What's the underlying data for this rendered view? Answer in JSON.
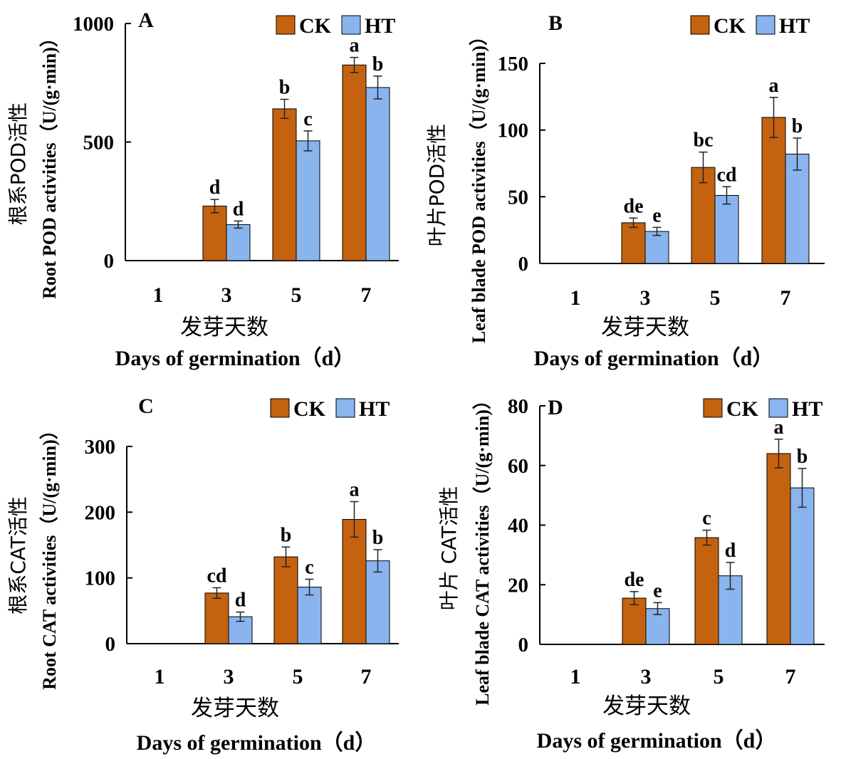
{
  "colors": {
    "ck": "#C4620F",
    "ht": "#89B4EE",
    "axis": "#000000",
    "error": "#222222"
  },
  "chart_data": [
    {
      "type": "bar",
      "panel_label": "A",
      "categories": [
        "1",
        "3",
        "5",
        "7"
      ],
      "series": [
        {
          "name": "CK",
          "values": [
            null,
            230,
            640,
            825
          ],
          "errors": [
            null,
            28,
            40,
            32
          ],
          "letters": [
            "",
            "d",
            "b",
            "a"
          ]
        },
        {
          "name": "HT",
          "values": [
            null,
            152,
            505,
            730
          ],
          "errors": [
            null,
            15,
            42,
            48
          ],
          "letters": [
            "",
            "d",
            "c",
            "b"
          ]
        }
      ],
      "ylim": [
        0,
        1000
      ],
      "yticks": [
        0,
        500,
        1000
      ],
      "ylabel_zh": "根系POD活性",
      "ylabel_en": "Root POD activities（U/(g·min)）",
      "xlabel_zh": "发芽天数",
      "xlabel_en": "Days of germination（d）",
      "legend": "top-right"
    },
    {
      "type": "bar",
      "panel_label": "B",
      "categories": [
        "1",
        "3",
        "5",
        "7"
      ],
      "series": [
        {
          "name": "CK",
          "values": [
            null,
            30.5,
            72,
            109.5
          ],
          "errors": [
            null,
            3.5,
            11.5,
            15
          ],
          "letters": [
            "",
            "de",
            "bc",
            "a"
          ]
        },
        {
          "name": "HT",
          "values": [
            null,
            24,
            51,
            82
          ],
          "errors": [
            null,
            3,
            6.5,
            12
          ],
          "letters": [
            "",
            "e",
            "cd",
            "b"
          ]
        }
      ],
      "ylim": [
        0,
        150
      ],
      "yticks": [
        0,
        50,
        100,
        150
      ],
      "ylabel_zh": "叶片POD活性",
      "ylabel_en": "Leaf blade POD activities（U/(g·min)）",
      "xlabel_zh": "发芽天数",
      "xlabel_en": "Days of germination（d）",
      "legend": "top-right"
    },
    {
      "type": "bar",
      "panel_label": "C",
      "categories": [
        "1",
        "3",
        "5",
        "7"
      ],
      "series": [
        {
          "name": "CK",
          "values": [
            null,
            77,
            132,
            189
          ],
          "errors": [
            null,
            8,
            15,
            27
          ],
          "letters": [
            "",
            "cd",
            "b",
            "a"
          ]
        },
        {
          "name": "HT",
          "values": [
            null,
            41,
            86,
            126
          ],
          "errors": [
            null,
            7,
            12,
            17
          ],
          "letters": [
            "",
            "d",
            "c",
            "b"
          ]
        }
      ],
      "ylim": [
        0,
        300
      ],
      "yticks": [
        0,
        100,
        200,
        300
      ],
      "ylabel_zh": "根系CAT活性",
      "ylabel_en": "Root CAT activities（U/(g·min)）",
      "xlabel_zh": "发芽天数",
      "xlabel_en": "Days of germination（d）",
      "legend": "top-right"
    },
    {
      "type": "bar",
      "panel_label": "D",
      "categories": [
        "1",
        "3",
        "5",
        "7"
      ],
      "series": [
        {
          "name": "CK",
          "values": [
            null,
            15.5,
            35.8,
            64
          ],
          "errors": [
            null,
            2.2,
            2.5,
            4.8
          ],
          "letters": [
            "",
            "de",
            "c",
            "a"
          ]
        },
        {
          "name": "HT",
          "values": [
            null,
            12,
            23,
            52.5
          ],
          "errors": [
            null,
            2,
            4.5,
            6.5
          ],
          "letters": [
            "",
            "e",
            "d",
            "b"
          ]
        }
      ],
      "ylim": [
        0,
        80
      ],
      "yticks": [
        0,
        20,
        40,
        60,
        80
      ],
      "ylabel_zh": "叶片 CAT活性",
      "ylabel_en": "Leaf blade CAT activities（U/(g·min)）",
      "xlabel_zh": "发芽天数",
      "xlabel_en": "Days of germination（d）",
      "legend": "top-right"
    }
  ]
}
